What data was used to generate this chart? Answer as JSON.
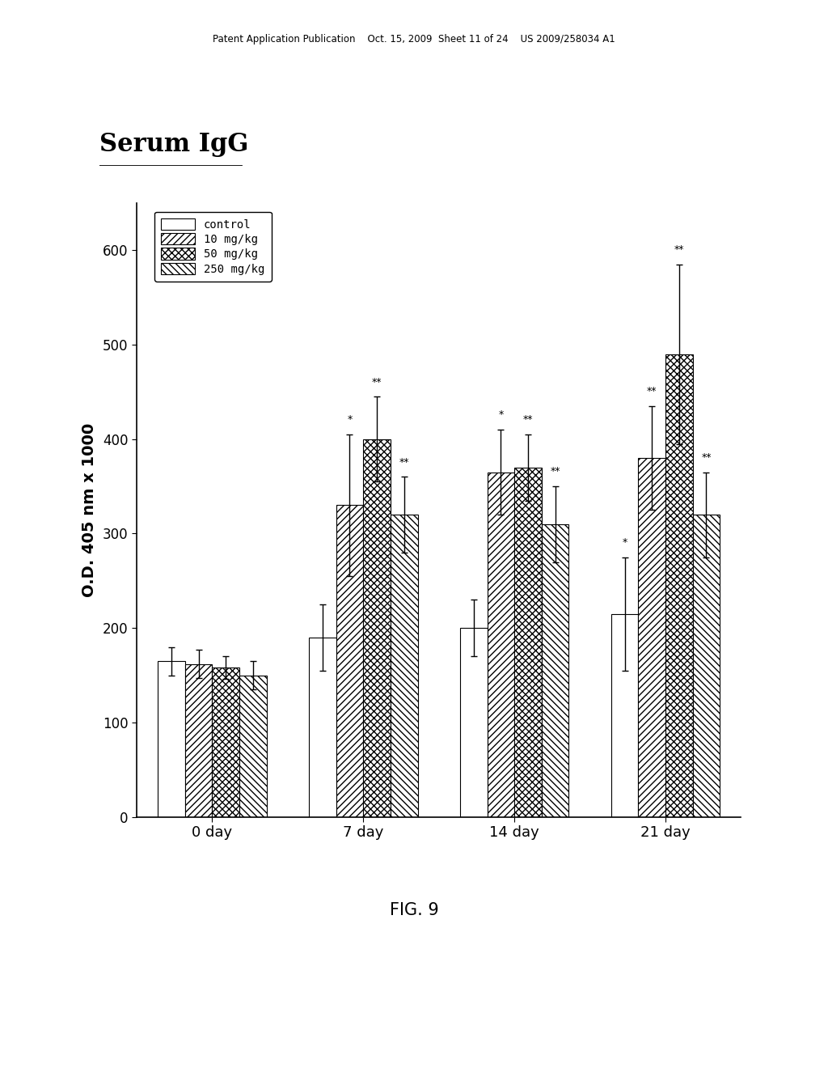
{
  "title": "Serum IgG",
  "ylabel": "O.D. 405 nm x 1000",
  "fig_label": "FIG. 9",
  "patent_header": "Patent Application Publication    Oct. 15, 2009  Sheet 11 of 24    US 2009/258034 A1",
  "groups": [
    "0 day",
    "7 day",
    "14 day",
    "21 day"
  ],
  "series_labels": [
    "control",
    "10 mg/kg",
    "50 mg/kg",
    "250 mg/kg"
  ],
  "bar_values": [
    [
      165,
      190,
      200,
      215
    ],
    [
      162,
      330,
      365,
      380
    ],
    [
      158,
      400,
      370,
      490
    ],
    [
      150,
      320,
      310,
      320
    ]
  ],
  "bar_errors": [
    [
      15,
      35,
      30,
      60
    ],
    [
      15,
      75,
      45,
      55
    ],
    [
      12,
      45,
      35,
      95
    ],
    [
      15,
      40,
      40,
      45
    ]
  ],
  "annot_groups": [
    1,
    1,
    1,
    2,
    2,
    2,
    3,
    3,
    3,
    3
  ],
  "annot_series": [
    1,
    2,
    3,
    1,
    2,
    3,
    0,
    1,
    2,
    3
  ],
  "annot_labels": [
    "*",
    "**",
    "**",
    "*",
    "**",
    "**",
    "*",
    "**",
    "**",
    "**"
  ],
  "ylim": [
    0,
    650
  ],
  "yticks": [
    0,
    100,
    200,
    300,
    400,
    500,
    600
  ],
  "hatch_patterns": [
    "",
    "////",
    "xxxx",
    "\\\\\\\\"
  ],
  "face_colors": [
    "white",
    "white",
    "white",
    "white"
  ],
  "edge_colors": [
    "black",
    "black",
    "black",
    "black"
  ],
  "background_color": "#ffffff",
  "bar_width": 0.18,
  "legend_labels_spaced": [
    "control",
    "10 mg/kg",
    "50 mg/kg",
    "250 mg/kg"
  ]
}
